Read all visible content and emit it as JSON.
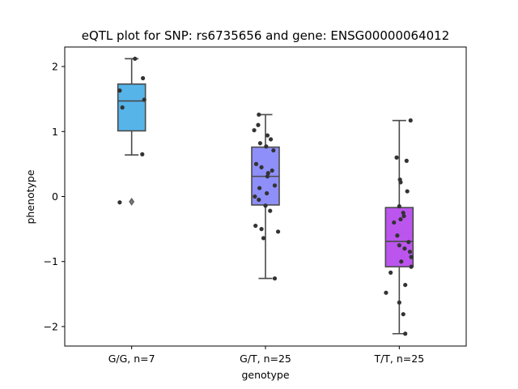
{
  "chart_data": {
    "type": "box",
    "title": "eQTL plot for SNP: rs6735656 and gene: ENSG00000064012",
    "xlabel": "genotype",
    "ylabel": "phenotype",
    "ylim": [
      -2.3,
      2.3
    ],
    "yticks": [
      -2,
      -1,
      0,
      1,
      2
    ],
    "ytick_labels": [
      "−2",
      "−1",
      "0",
      "1",
      "2"
    ],
    "categories": [
      "G/G, n=7",
      "G/T, n=25",
      "T/T, n=25"
    ],
    "colors": [
      "#56b4e9",
      "#8f8ffa",
      "#bb55ee"
    ],
    "groups": [
      {
        "label": "G/G, n=7",
        "q1": 1.01,
        "median": 1.47,
        "q3": 1.73,
        "whisker_low": 0.64,
        "whisker_high": 2.12,
        "fliers": [
          -0.08
        ],
        "points": [
          {
            "dx": 0.05,
            "y": 2.12
          },
          {
            "dx": 0.17,
            "y": 1.82
          },
          {
            "dx": -0.18,
            "y": 1.63
          },
          {
            "dx": 0.19,
            "y": 1.49
          },
          {
            "dx": -0.14,
            "y": 1.37
          },
          {
            "dx": 0.16,
            "y": 0.65
          },
          {
            "dx": -0.18,
            "y": -0.09
          }
        ]
      },
      {
        "label": "G/T, n=25",
        "q1": -0.13,
        "median": 0.31,
        "q3": 0.76,
        "whisker_low": -1.26,
        "whisker_high": 1.26,
        "fliers": [],
        "points": [
          {
            "dx": -0.1,
            "y": 1.26
          },
          {
            "dx": -0.11,
            "y": 1.1
          },
          {
            "dx": -0.17,
            "y": 1.02
          },
          {
            "dx": 0.03,
            "y": 0.94
          },
          {
            "dx": 0.08,
            "y": 0.88
          },
          {
            "dx": -0.08,
            "y": 0.82
          },
          {
            "dx": 0.01,
            "y": 0.77
          },
          {
            "dx": 0.12,
            "y": 0.71
          },
          {
            "dx": -0.14,
            "y": 0.5
          },
          {
            "dx": -0.06,
            "y": 0.45
          },
          {
            "dx": 0.1,
            "y": 0.4
          },
          {
            "dx": 0.04,
            "y": 0.36
          },
          {
            "dx": 0.03,
            "y": 0.31
          },
          {
            "dx": 0.14,
            "y": 0.17
          },
          {
            "dx": -0.09,
            "y": 0.13
          },
          {
            "dx": 0.02,
            "y": 0.05
          },
          {
            "dx": -0.16,
            "y": 0.0
          },
          {
            "dx": -0.1,
            "y": -0.05
          },
          {
            "dx": 0.0,
            "y": -0.14
          },
          {
            "dx": 0.07,
            "y": -0.22
          },
          {
            "dx": -0.15,
            "y": -0.45
          },
          {
            "dx": -0.06,
            "y": -0.5
          },
          {
            "dx": 0.19,
            "y": -0.54
          },
          {
            "dx": -0.03,
            "y": -0.64
          },
          {
            "dx": 0.14,
            "y": -1.26
          }
        ]
      },
      {
        "label": "T/T, n=25",
        "q1": -1.08,
        "median": -0.69,
        "q3": -0.17,
        "whisker_low": -2.11,
        "whisker_high": 1.17,
        "fliers": [],
        "points": [
          {
            "dx": 0.17,
            "y": 1.17
          },
          {
            "dx": -0.04,
            "y": 0.6
          },
          {
            "dx": 0.11,
            "y": 0.55
          },
          {
            "dx": 0.01,
            "y": 0.26
          },
          {
            "dx": 0.02,
            "y": 0.22
          },
          {
            "dx": 0.12,
            "y": 0.08
          },
          {
            "dx": 0.0,
            "y": -0.15
          },
          {
            "dx": 0.06,
            "y": -0.25
          },
          {
            "dx": 0.07,
            "y": -0.3
          },
          {
            "dx": 0.02,
            "y": -0.35
          },
          {
            "dx": -0.08,
            "y": -0.4
          },
          {
            "dx": -0.03,
            "y": -0.6
          },
          {
            "dx": 0.14,
            "y": -0.7
          },
          {
            "dx": 0.0,
            "y": -0.75
          },
          {
            "dx": 0.08,
            "y": -0.8
          },
          {
            "dx": 0.16,
            "y": -0.85
          },
          {
            "dx": 0.18,
            "y": -0.93
          },
          {
            "dx": 0.03,
            "y": -1.0
          },
          {
            "dx": 0.18,
            "y": -1.08
          },
          {
            "dx": -0.13,
            "y": -1.17
          },
          {
            "dx": 0.09,
            "y": -1.36
          },
          {
            "dx": -0.2,
            "y": -1.48
          },
          {
            "dx": 0.0,
            "y": -1.63
          },
          {
            "dx": 0.06,
            "y": -1.81
          },
          {
            "dx": 0.09,
            "y": -2.11
          }
        ]
      }
    ]
  }
}
